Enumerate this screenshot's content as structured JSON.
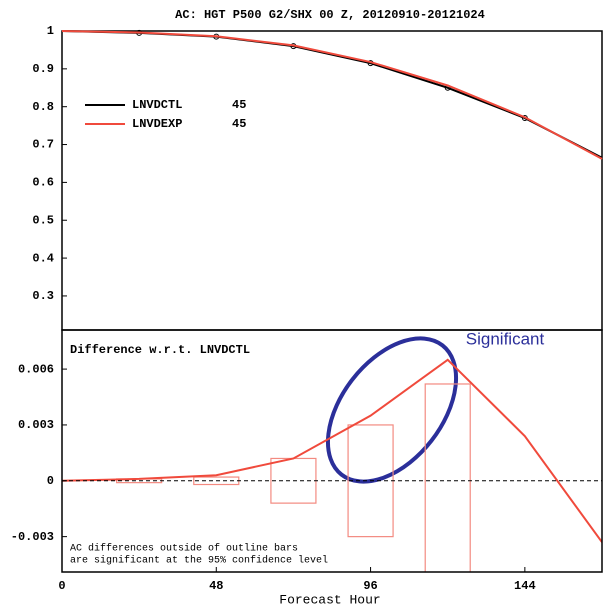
{
  "chart_data": [
    {
      "type": "line",
      "title": "AC: HGT P500 G2/SHX 00 Z, 20120910-20121024",
      "x": [
        0,
        24,
        48,
        72,
        96,
        120,
        144,
        168
      ],
      "xlim": [
        0,
        168
      ],
      "ylim": [
        0.21,
        1
      ],
      "yticks": [
        0.3,
        0.4,
        0.5,
        0.6,
        0.7,
        0.8,
        0.9,
        1
      ],
      "series": [
        {
          "name": "LNVDCTL",
          "count": 45,
          "color": "#000000",
          "markers": true,
          "values": [
            1,
            0.995,
            0.985,
            0.96,
            0.915,
            0.85,
            0.77,
            0.665
          ]
        },
        {
          "name": "LNVDEXP",
          "count": 45,
          "color": "#f04a3c",
          "markers": false,
          "values": [
            1,
            0.996,
            0.986,
            0.962,
            0.918,
            0.856,
            0.772,
            0.662
          ]
        }
      ]
    },
    {
      "type": "line",
      "title": "Difference w.r.t. LNVDCTL",
      "x_label": "Forecast Hour",
      "note": [
        "AC differences outside of outline bars",
        "are significant at the 95% confidence level"
      ],
      "annotation": "Significant",
      "x": [
        0,
        24,
        48,
        72,
        96,
        120,
        144,
        168
      ],
      "xlim": [
        0,
        168
      ],
      "xticks": [
        0,
        48,
        96,
        144
      ],
      "ylim": [
        -0.0049,
        0.0081
      ],
      "yticks": [
        -0.003,
        0,
        0.003,
        0.006
      ],
      "series": [
        {
          "name": "LNVDEXP",
          "color": "#f04a3c",
          "values": [
            0,
            0.0001,
            0.0003,
            0.0012,
            0.0035,
            0.0065,
            0.0024,
            -0.0033
          ]
        }
      ],
      "bars": {
        "color": "#f38a80",
        "x": [
          24,
          48,
          72,
          96,
          120
        ],
        "values": [
          0.0001,
          0.0002,
          0.0012,
          0.003,
          0.0052
        ]
      }
    }
  ]
}
